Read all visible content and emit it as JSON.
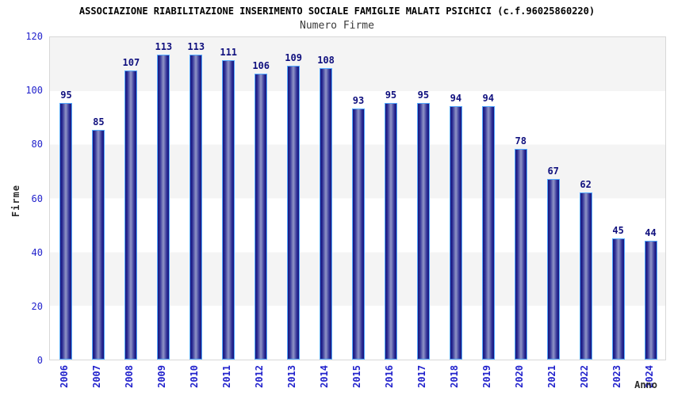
{
  "chart_data": {
    "type": "bar",
    "title": "ASSOCIAZIONE RIABILITAZIONE INSERIMENTO SOCIALE FAMIGLIE MALATI PSICHICI (c.f.96025860220)",
    "subtitle": "Numero Firme",
    "xlabel": "Anno",
    "ylabel": "Firme",
    "categories": [
      "2006",
      "2007",
      "2008",
      "2009",
      "2010",
      "2011",
      "2012",
      "2013",
      "2014",
      "2015",
      "2016",
      "2017",
      "2018",
      "2019",
      "2020",
      "2021",
      "2022",
      "2023",
      "2024"
    ],
    "values": [
      95,
      85,
      107,
      113,
      113,
      111,
      106,
      109,
      108,
      93,
      95,
      95,
      94,
      94,
      78,
      67,
      62,
      45,
      44
    ],
    "ylim": [
      0,
      120
    ],
    "yticks": [
      0,
      20,
      40,
      60,
      80,
      100,
      120
    ],
    "grid": "alternating-bands",
    "legend_position": "none",
    "colors": {
      "bar_edge": "#15157d",
      "bar_mid": "#2d2d94",
      "bar_center": "#9095c7",
      "bar_border": "#55aaff",
      "value_label": "#10107e",
      "tick_label": "#2222cc",
      "band_gray": "#f4f4f4",
      "band_white": "#ffffff",
      "plot_border": "#d8d8d8"
    }
  }
}
